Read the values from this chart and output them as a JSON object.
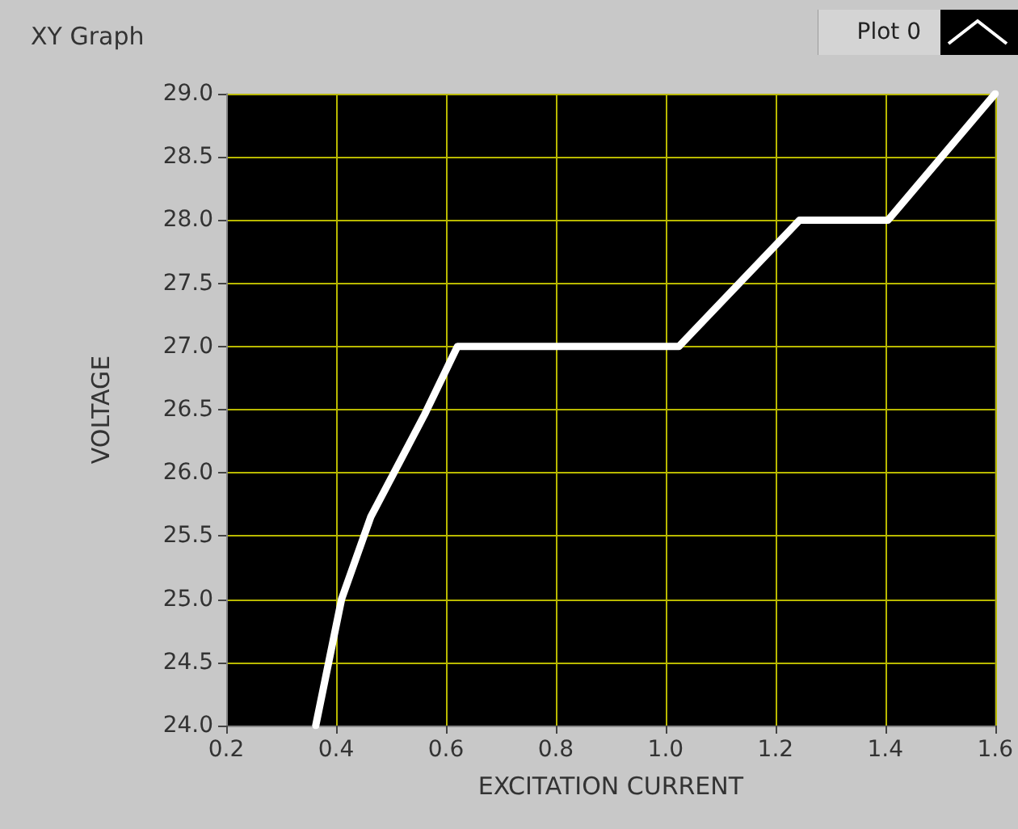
{
  "chart_data": {
    "type": "line",
    "title": "XY Graph",
    "xlabel": "EXCITATION CURRENT",
    "ylabel": "VOLTAGE",
    "series": [
      {
        "name": "Plot 0",
        "color": "#ffffff",
        "x": [
          0.363,
          0.41,
          0.463,
          0.561,
          0.621,
          1.024,
          1.244,
          1.405,
          1.6
        ],
        "values": [
          24.0,
          25.0,
          25.65,
          26.46,
          27.0,
          27.0,
          28.0,
          28.0,
          29.0
        ]
      }
    ],
    "xlim": [
      0.2,
      1.6
    ],
    "xticks": [
      {
        "value": 0.2,
        "label": "0.2"
      },
      {
        "value": 0.4,
        "label": "0.4"
      },
      {
        "value": 0.6,
        "label": "0.6"
      },
      {
        "value": 0.8,
        "label": "0.8"
      },
      {
        "value": 1.0,
        "label": "1.0"
      },
      {
        "value": 1.2,
        "label": "1.2"
      },
      {
        "value": 1.4,
        "label": "1.4"
      },
      {
        "value": 1.6,
        "label": "1.6"
      }
    ],
    "ylim": [
      24,
      29
    ],
    "yticks": [
      {
        "value": 24,
        "label": "24.0"
      },
      {
        "value": 24.5,
        "label": "24.5"
      },
      {
        "value": 25,
        "label": "25.0"
      },
      {
        "value": 25.5,
        "label": "25.5"
      },
      {
        "value": 26,
        "label": "26.0"
      },
      {
        "value": 26.5,
        "label": "26.5"
      },
      {
        "value": 27,
        "label": "27.0"
      },
      {
        "value": 27.5,
        "label": "27.5"
      },
      {
        "value": 28,
        "label": "28.0"
      },
      {
        "value": 28.5,
        "label": "28.5"
      },
      {
        "value": 29,
        "label": "29.0"
      }
    ],
    "grid": true,
    "legend": "top right",
    "marker": "none",
    "line_style": "solid"
  }
}
